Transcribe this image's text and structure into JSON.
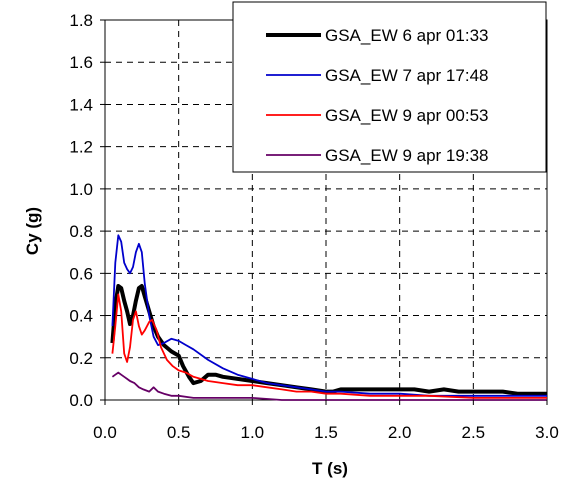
{
  "chart_data": {
    "type": "line",
    "title": "",
    "xlabel": "T (s)",
    "ylabel": "Cy (g)",
    "xlim": [
      0,
      3.0
    ],
    "ylim": [
      0,
      1.8
    ],
    "x_ticks": [
      "0.0",
      "0.5",
      "1.0",
      "1.5",
      "2.0",
      "2.5",
      "3.0"
    ],
    "y_ticks": [
      "0.0",
      "0.2",
      "0.4",
      "0.6",
      "0.8",
      "1.0",
      "1.2",
      "1.4",
      "1.6",
      "1.8"
    ],
    "grid": true,
    "legend_position": "top-right",
    "series": [
      {
        "name": "GSA_EW 6 apr 01:33",
        "color": "#000000",
        "points": [
          [
            0.05,
            0.27
          ],
          [
            0.07,
            0.45
          ],
          [
            0.09,
            0.54
          ],
          [
            0.11,
            0.53
          ],
          [
            0.13,
            0.47
          ],
          [
            0.15,
            0.42
          ],
          [
            0.17,
            0.36
          ],
          [
            0.19,
            0.4
          ],
          [
            0.21,
            0.47
          ],
          [
            0.23,
            0.53
          ],
          [
            0.25,
            0.54
          ],
          [
            0.27,
            0.49
          ],
          [
            0.3,
            0.42
          ],
          [
            0.33,
            0.35
          ],
          [
            0.36,
            0.3
          ],
          [
            0.4,
            0.26
          ],
          [
            0.45,
            0.23
          ],
          [
            0.5,
            0.21
          ],
          [
            0.53,
            0.16
          ],
          [
            0.57,
            0.11
          ],
          [
            0.6,
            0.08
          ],
          [
            0.65,
            0.09
          ],
          [
            0.7,
            0.12
          ],
          [
            0.75,
            0.12
          ],
          [
            0.8,
            0.11
          ],
          [
            0.9,
            0.1
          ],
          [
            1.0,
            0.09
          ],
          [
            1.1,
            0.08
          ],
          [
            1.2,
            0.07
          ],
          [
            1.3,
            0.06
          ],
          [
            1.4,
            0.05
          ],
          [
            1.5,
            0.04
          ],
          [
            1.55,
            0.04
          ],
          [
            1.6,
            0.05
          ],
          [
            1.7,
            0.05
          ],
          [
            1.8,
            0.05
          ],
          [
            1.9,
            0.05
          ],
          [
            2.0,
            0.05
          ],
          [
            2.1,
            0.05
          ],
          [
            2.2,
            0.04
          ],
          [
            2.3,
            0.05
          ],
          [
            2.4,
            0.04
          ],
          [
            2.5,
            0.04
          ],
          [
            2.6,
            0.04
          ],
          [
            2.7,
            0.04
          ],
          [
            2.8,
            0.03
          ],
          [
            2.9,
            0.03
          ],
          [
            3.0,
            0.03
          ]
        ]
      },
      {
        "name": "GSA_EW 7 apr 17:48",
        "color": "#0000cc",
        "points": [
          [
            0.05,
            0.35
          ],
          [
            0.07,
            0.65
          ],
          [
            0.09,
            0.78
          ],
          [
            0.11,
            0.75
          ],
          [
            0.13,
            0.65
          ],
          [
            0.15,
            0.62
          ],
          [
            0.17,
            0.6
          ],
          [
            0.19,
            0.63
          ],
          [
            0.21,
            0.7
          ],
          [
            0.23,
            0.74
          ],
          [
            0.25,
            0.7
          ],
          [
            0.27,
            0.55
          ],
          [
            0.3,
            0.4
          ],
          [
            0.33,
            0.3
          ],
          [
            0.36,
            0.26
          ],
          [
            0.4,
            0.27
          ],
          [
            0.45,
            0.29
          ],
          [
            0.5,
            0.28
          ],
          [
            0.55,
            0.26
          ],
          [
            0.6,
            0.24
          ],
          [
            0.7,
            0.19
          ],
          [
            0.8,
            0.15
          ],
          [
            0.9,
            0.12
          ],
          [
            1.0,
            0.1
          ],
          [
            1.1,
            0.08
          ],
          [
            1.2,
            0.07
          ],
          [
            1.3,
            0.06
          ],
          [
            1.4,
            0.05
          ],
          [
            1.5,
            0.04
          ],
          [
            1.6,
            0.04
          ],
          [
            1.8,
            0.03
          ],
          [
            2.0,
            0.03
          ],
          [
            2.2,
            0.02
          ],
          [
            2.5,
            0.02
          ],
          [
            2.8,
            0.02
          ],
          [
            3.0,
            0.02
          ]
        ]
      },
      {
        "name": "GSA_EW 9 apr 00:53",
        "color": "#ff0000",
        "points": [
          [
            0.05,
            0.22
          ],
          [
            0.07,
            0.35
          ],
          [
            0.09,
            0.5
          ],
          [
            0.11,
            0.42
          ],
          [
            0.13,
            0.22
          ],
          [
            0.15,
            0.18
          ],
          [
            0.17,
            0.25
          ],
          [
            0.19,
            0.38
          ],
          [
            0.21,
            0.42
          ],
          [
            0.23,
            0.35
          ],
          [
            0.25,
            0.31
          ],
          [
            0.27,
            0.33
          ],
          [
            0.3,
            0.37
          ],
          [
            0.32,
            0.38
          ],
          [
            0.35,
            0.33
          ],
          [
            0.38,
            0.25
          ],
          [
            0.42,
            0.19
          ],
          [
            0.46,
            0.16
          ],
          [
            0.5,
            0.14
          ],
          [
            0.55,
            0.13
          ],
          [
            0.6,
            0.11
          ],
          [
            0.7,
            0.09
          ],
          [
            0.8,
            0.08
          ],
          [
            0.9,
            0.07
          ],
          [
            1.0,
            0.07
          ],
          [
            1.1,
            0.06
          ],
          [
            1.2,
            0.05
          ],
          [
            1.3,
            0.04
          ],
          [
            1.4,
            0.04
          ],
          [
            1.5,
            0.03
          ],
          [
            1.6,
            0.03
          ],
          [
            1.8,
            0.02
          ],
          [
            2.0,
            0.02
          ],
          [
            2.2,
            0.02
          ],
          [
            2.5,
            0.01
          ],
          [
            2.8,
            0.01
          ],
          [
            3.0,
            0.01
          ]
        ]
      },
      {
        "name": "GSA_EW 9 apr 19:38",
        "color": "#660066",
        "points": [
          [
            0.05,
            0.11
          ],
          [
            0.07,
            0.12
          ],
          [
            0.09,
            0.13
          ],
          [
            0.11,
            0.12
          ],
          [
            0.13,
            0.11
          ],
          [
            0.15,
            0.1
          ],
          [
            0.17,
            0.09
          ],
          [
            0.2,
            0.08
          ],
          [
            0.23,
            0.06
          ],
          [
            0.26,
            0.05
          ],
          [
            0.3,
            0.04
          ],
          [
            0.33,
            0.06
          ],
          [
            0.36,
            0.04
          ],
          [
            0.4,
            0.03
          ],
          [
            0.45,
            0.02
          ],
          [
            0.5,
            0.02
          ],
          [
            0.6,
            0.01
          ],
          [
            0.7,
            0.01
          ],
          [
            0.8,
            0.01
          ],
          [
            1.0,
            0.01
          ],
          [
            1.2,
            0.0
          ],
          [
            1.5,
            0.0
          ],
          [
            2.0,
            0.0
          ],
          [
            2.5,
            0.0
          ],
          [
            3.0,
            0.0
          ]
        ]
      }
    ]
  }
}
